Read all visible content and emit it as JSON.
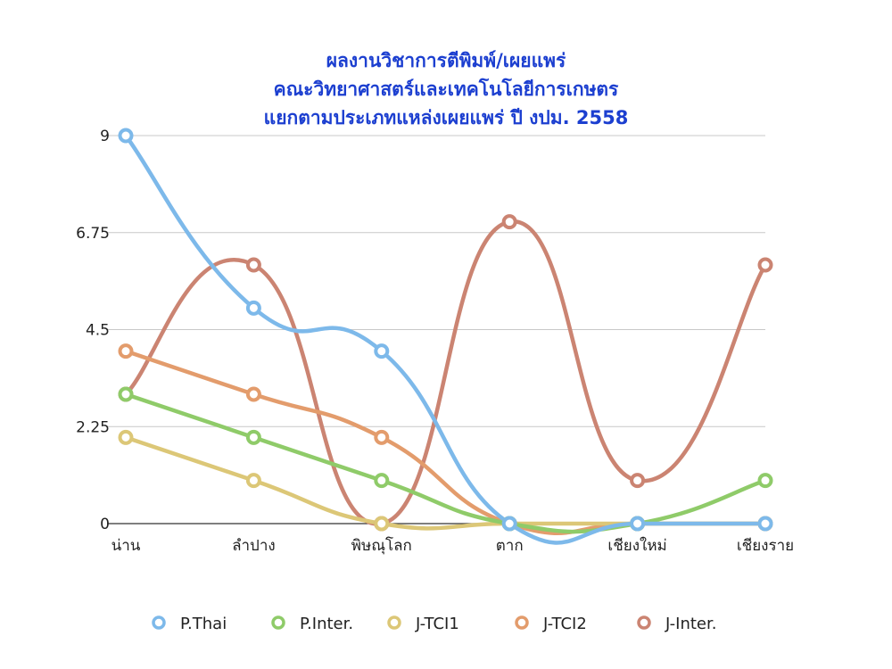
{
  "chart_data": {
    "type": "line",
    "title_lines": [
      "ผลงานวิชาการตีพิมพ์/เผยแพร่",
      "คณะวิทยาศาสตร์และเทคโนโลยีการเกษตร",
      "แยกตามประเภทแหล่งเผยแพร่ ปี งปม. 2558"
    ],
    "categories": [
      "น่าน",
      "ลำปาง",
      "พิษณุโลก",
      "ตาก",
      "เชียงใหม่",
      "เชียงราย"
    ],
    "y_ticks": [
      "0",
      "2.25",
      "4.5",
      "6.75",
      "9"
    ],
    "ylim": [
      0,
      9
    ],
    "grid": true,
    "legend_position": "bottom",
    "series": [
      {
        "name": "P.Thai",
        "color": "#7db9ea",
        "values": [
          9,
          5,
          4,
          0,
          0,
          0
        ]
      },
      {
        "name": "P.Inter.",
        "color": "#8fcb69",
        "values": [
          3,
          2,
          1,
          0,
          0,
          1
        ]
      },
      {
        "name": "J-TCI1",
        "color": "#dcc777",
        "values": [
          2,
          1,
          0,
          0,
          0,
          0
        ]
      },
      {
        "name": "J-TCI2",
        "color": "#e39c6c",
        "values": [
          4,
          3,
          2,
          0,
          0,
          0
        ]
      },
      {
        "name": "J-Inter.",
        "color": "#cb8472",
        "values": [
          3,
          6,
          0,
          7,
          1,
          6
        ]
      }
    ]
  }
}
